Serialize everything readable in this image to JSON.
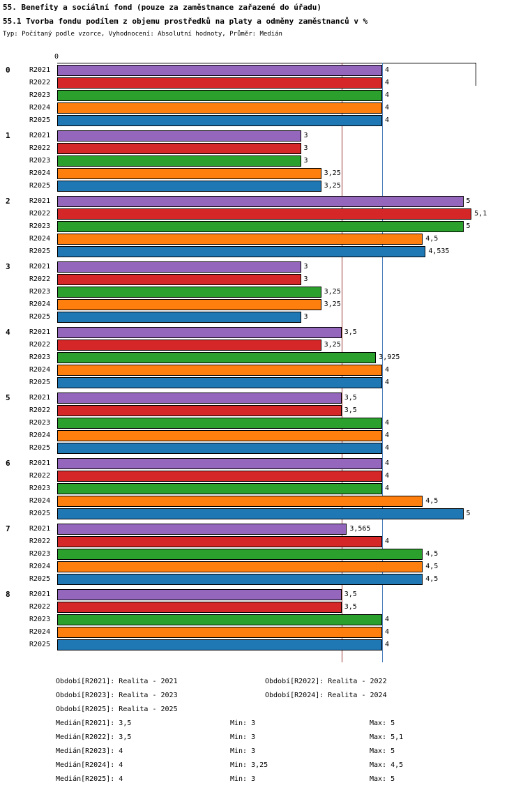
{
  "chart_data": {
    "type": "bar",
    "orientation": "horizontal",
    "title": "55. Benefity a sociální fond (pouze za zaměstnance zařazené do úřadu)",
    "subtitle": "55.1 Tvorba fondu podílem z objemu prostředků na platy a odměny zaměstnanců v %",
    "meta": "Typ: Počítaný podle vzorce, Vyhodnocení: Absolutní hodnoty, Průměr: Medián",
    "xlim": [
      0,
      5.15
    ],
    "axis_origin_label": "0",
    "grid": false,
    "legend_position": "bottom",
    "series": [
      {
        "name": "R2021",
        "color": "#9467bd"
      },
      {
        "name": "R2022",
        "color": "#d62728"
      },
      {
        "name": "R2023",
        "color": "#2ca02c"
      },
      {
        "name": "R2024",
        "color": "#ff7f0e"
      },
      {
        "name": "R2025",
        "color": "#1f77b4"
      }
    ],
    "groups": [
      {
        "label": "0",
        "values": [
          4,
          4,
          4,
          4,
          4
        ],
        "value_labels": [
          "4",
          "4",
          "4",
          "4",
          "4"
        ]
      },
      {
        "label": "1",
        "values": [
          3,
          3,
          3,
          3.25,
          3.25
        ],
        "value_labels": [
          "3",
          "3",
          "3",
          "3,25",
          "3,25"
        ]
      },
      {
        "label": "2",
        "values": [
          5,
          5.1,
          5,
          4.5,
          4.535
        ],
        "value_labels": [
          "5",
          "5,1",
          "5",
          "4,5",
          "4,535"
        ]
      },
      {
        "label": "3",
        "values": [
          3,
          3,
          3.25,
          3.25,
          3
        ],
        "value_labels": [
          "3",
          "3",
          "3,25",
          "3,25",
          "3"
        ]
      },
      {
        "label": "4",
        "values": [
          3.5,
          3.25,
          3.925,
          4,
          4
        ],
        "value_labels": [
          "3,5",
          "3,25",
          "3,925",
          "4",
          "4"
        ]
      },
      {
        "label": "5",
        "values": [
          3.5,
          3.5,
          4,
          4,
          4
        ],
        "value_labels": [
          "3,5",
          "3,5",
          "4",
          "4",
          "4"
        ]
      },
      {
        "label": "6",
        "values": [
          4,
          4,
          4,
          4.5,
          5
        ],
        "value_labels": [
          "4",
          "4",
          "4",
          "4,5",
          "5"
        ]
      },
      {
        "label": "7",
        "values": [
          3.565,
          4,
          4.5,
          4.5,
          4.5
        ],
        "value_labels": [
          "3,565",
          "4",
          "4,5",
          "4,5",
          "4,5"
        ]
      },
      {
        "label": "8",
        "values": [
          3.5,
          3.5,
          4,
          4,
          4
        ],
        "value_labels": [
          "3,5",
          "3,5",
          "4",
          "4",
          "4"
        ]
      }
    ],
    "reference_lines": [
      {
        "value": 3.5,
        "color": "#993333"
      },
      {
        "value": 4,
        "color": "#4a7ebc"
      }
    ]
  },
  "legend": {
    "periods": [
      "Období[R2021]: Realita - 2021",
      "Období[R2022]: Realita - 2022",
      "Období[R2023]: Realita - 2023",
      "Období[R2024]: Realita - 2024",
      "Období[R2025]: Realita - 2025"
    ],
    "stats": [
      {
        "median": "Medián[R2021]: 3,5",
        "min": "Min: 3",
        "max": "Max: 5"
      },
      {
        "median": "Medián[R2022]: 3,5",
        "min": "Min: 3",
        "max": "Max: 5,1"
      },
      {
        "median": "Medián[R2023]: 4",
        "min": "Min: 3",
        "max": "Max: 5"
      },
      {
        "median": "Medián[R2024]: 4",
        "min": "Min: 3,25",
        "max": "Max: 4,5"
      },
      {
        "median": "Medián[R2025]: 4",
        "min": "Min: 3",
        "max": "Max: 5"
      }
    ]
  }
}
